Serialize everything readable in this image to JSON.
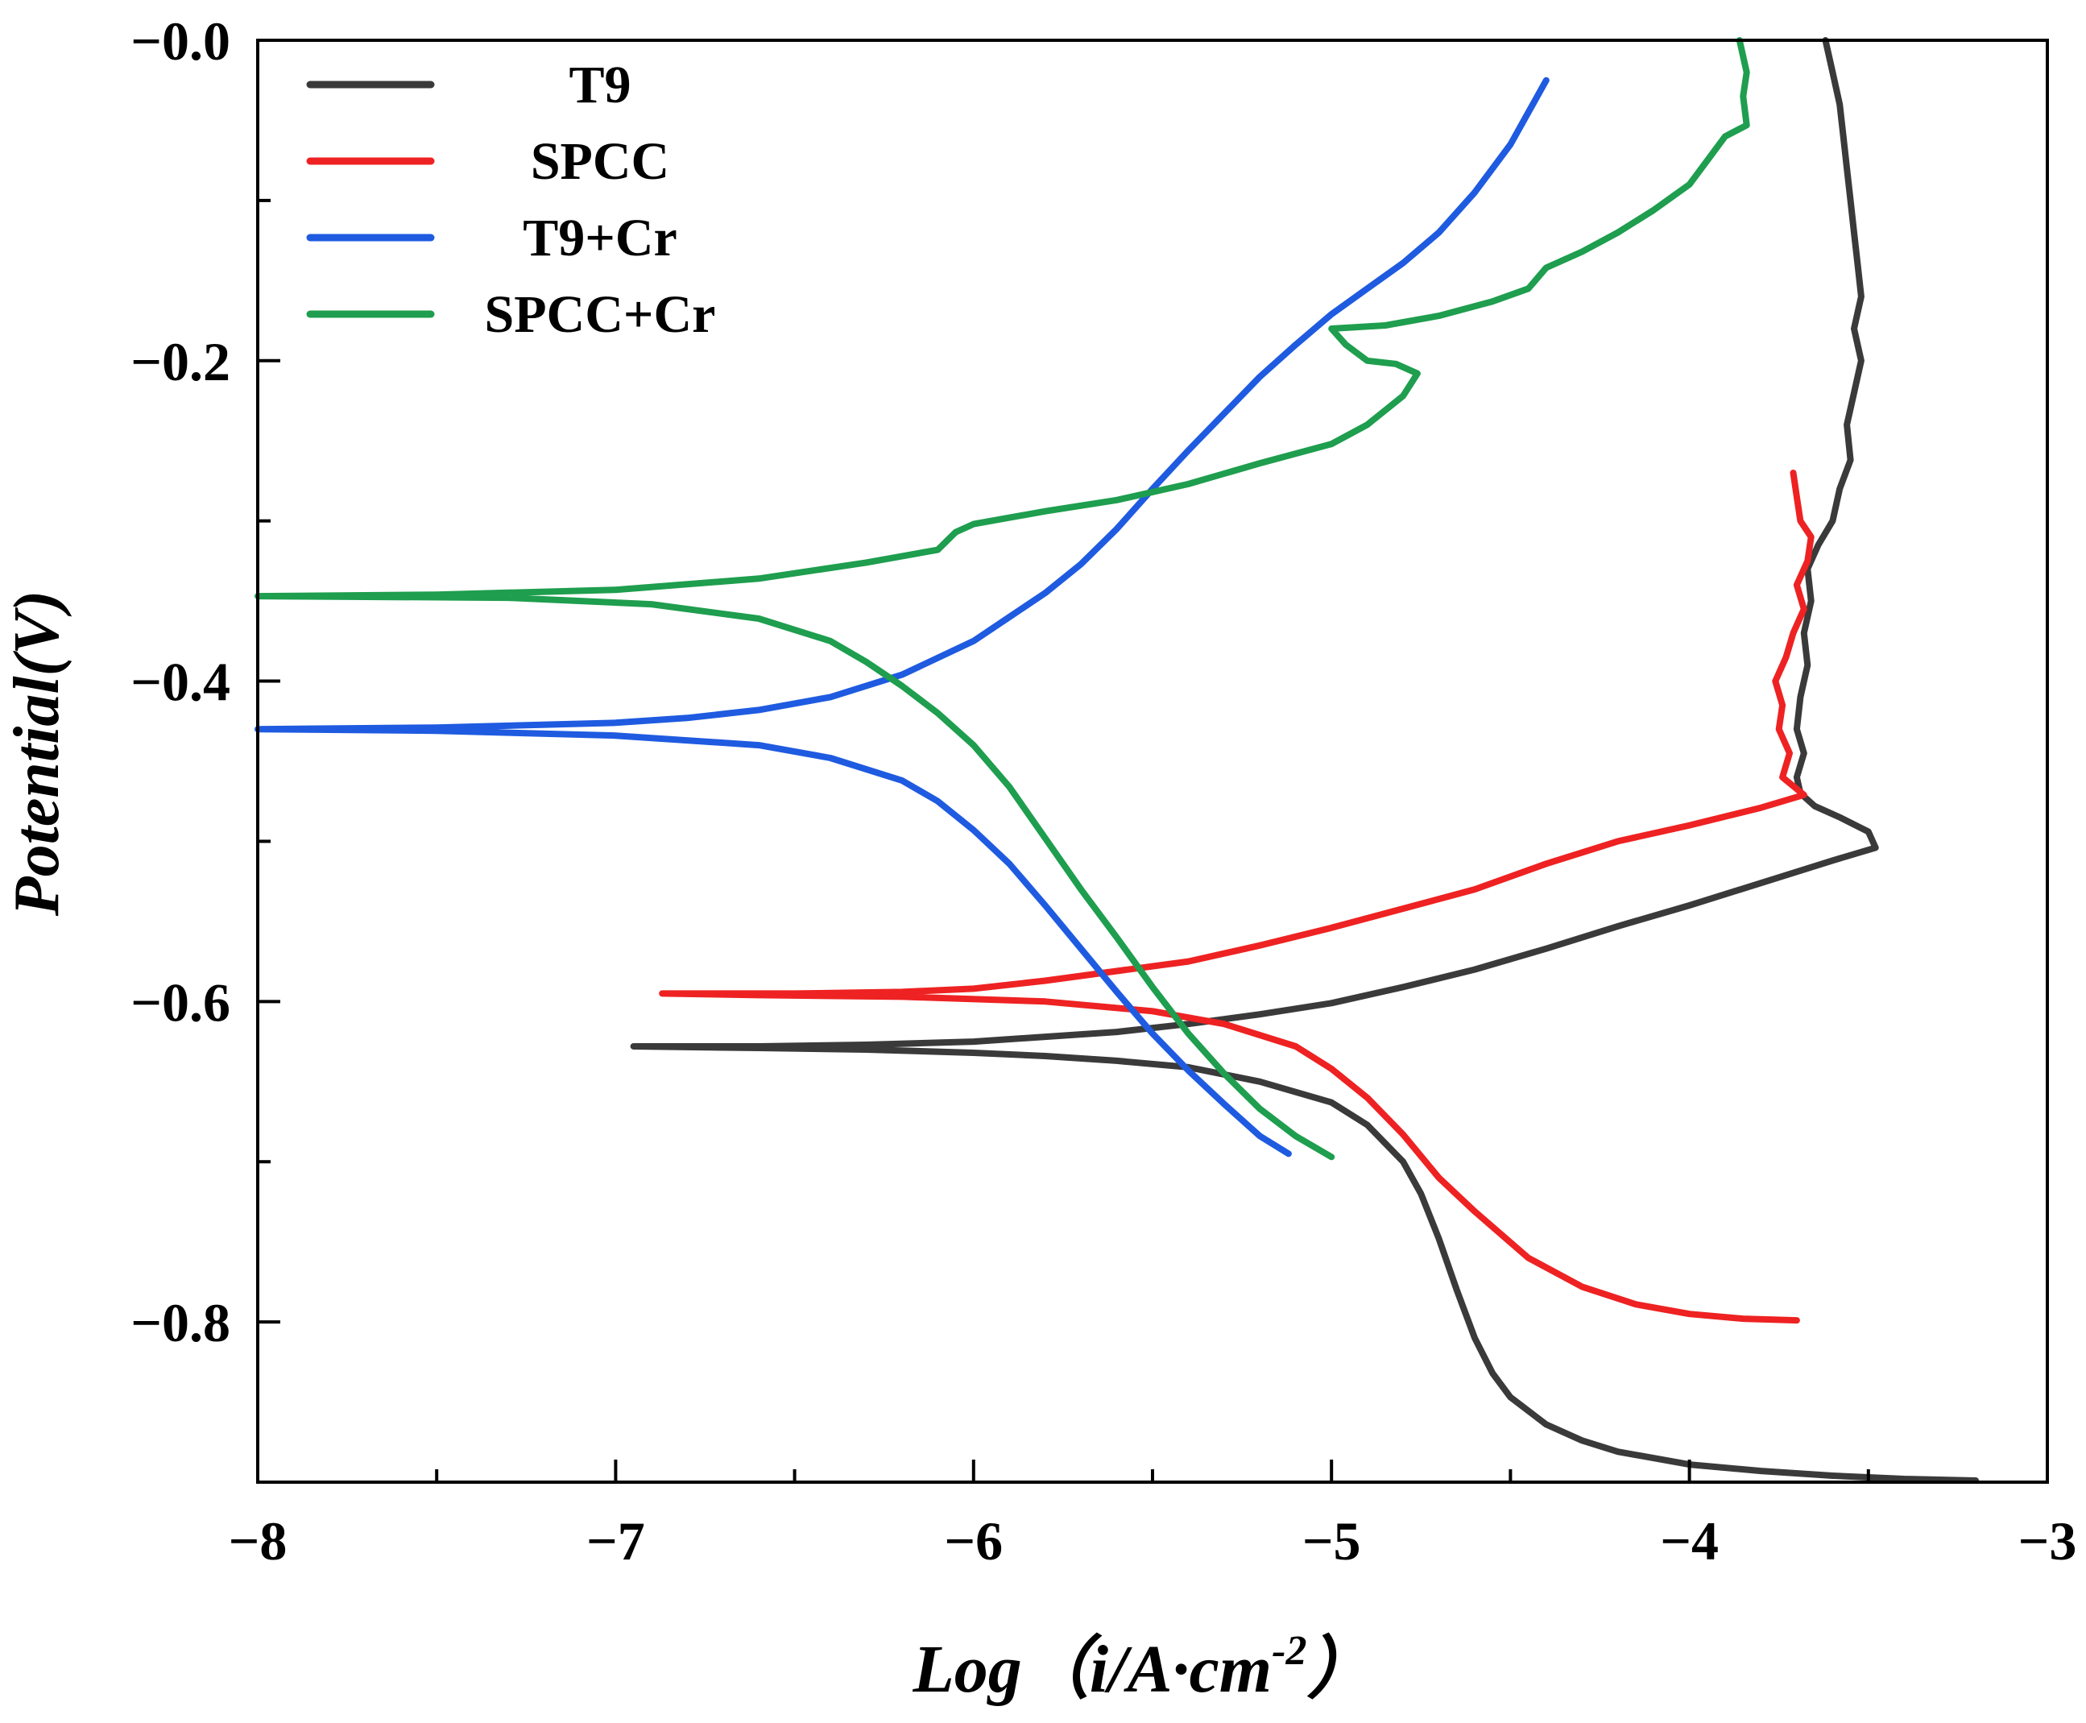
{
  "chart_data": {
    "type": "line",
    "xlabel": "Log（i/A·cm",
    "xlabel_sup": "-2",
    "xlabel_close": "）",
    "ylabel": "Potential(V)",
    "xlim": [
      -8,
      -3
    ],
    "ylim": [
      -0.9,
      0.0
    ],
    "x_ticks": [
      -8,
      -7,
      -6,
      -5,
      -4,
      -3
    ],
    "x_tick_labels": [
      "−8",
      "−7",
      "−6",
      "−5",
      "−4",
      "−3"
    ],
    "y_ticks": [
      -0.8,
      -0.6,
      -0.4,
      -0.2,
      0.0
    ],
    "y_tick_labels": [
      "−0.8",
      "−0.6",
      "−0.4",
      "−0.2",
      "−0.0"
    ],
    "legend_position": "top-left",
    "series": [
      {
        "name": "T9",
        "color": "#3a3a3a",
        "points": [
          [
            -3.2,
            -0.899
          ],
          [
            -3.4,
            -0.898
          ],
          [
            -3.6,
            -0.896
          ],
          [
            -3.8,
            -0.893
          ],
          [
            -4.0,
            -0.889
          ],
          [
            -4.2,
            -0.881
          ],
          [
            -4.3,
            -0.874
          ],
          [
            -4.4,
            -0.864
          ],
          [
            -4.5,
            -0.847
          ],
          [
            -4.55,
            -0.832
          ],
          [
            -4.6,
            -0.81
          ],
          [
            -4.65,
            -0.78
          ],
          [
            -4.7,
            -0.748
          ],
          [
            -4.75,
            -0.72
          ],
          [
            -4.8,
            -0.7
          ],
          [
            -4.9,
            -0.677
          ],
          [
            -5.0,
            -0.663
          ],
          [
            -5.2,
            -0.65
          ],
          [
            -5.4,
            -0.641
          ],
          [
            -5.6,
            -0.637
          ],
          [
            -5.8,
            -0.634
          ],
          [
            -6.0,
            -0.632
          ],
          [
            -6.3,
            -0.63
          ],
          [
            -6.6,
            -0.629
          ],
          [
            -6.95,
            -0.628
          ],
          [
            -6.6,
            -0.628
          ],
          [
            -6.3,
            -0.627
          ],
          [
            -6.0,
            -0.625
          ],
          [
            -5.8,
            -0.622
          ],
          [
            -5.6,
            -0.619
          ],
          [
            -5.4,
            -0.614
          ],
          [
            -5.2,
            -0.608
          ],
          [
            -5.0,
            -0.601
          ],
          [
            -4.8,
            -0.591
          ],
          [
            -4.6,
            -0.58
          ],
          [
            -4.4,
            -0.567
          ],
          [
            -4.2,
            -0.553
          ],
          [
            -4.0,
            -0.54
          ],
          [
            -3.8,
            -0.526
          ],
          [
            -3.6,
            -0.512
          ],
          [
            -3.48,
            -0.504
          ],
          [
            -3.5,
            -0.494
          ],
          [
            -3.58,
            -0.485
          ],
          [
            -3.65,
            -0.478
          ],
          [
            -3.69,
            -0.47
          ],
          [
            -3.7,
            -0.46
          ],
          [
            -3.68,
            -0.445
          ],
          [
            -3.7,
            -0.43
          ],
          [
            -3.69,
            -0.41
          ],
          [
            -3.67,
            -0.39
          ],
          [
            -3.68,
            -0.37
          ],
          [
            -3.66,
            -0.35
          ],
          [
            -3.67,
            -0.33
          ],
          [
            -3.64,
            -0.315
          ],
          [
            -3.6,
            -0.3
          ],
          [
            -3.58,
            -0.28
          ],
          [
            -3.55,
            -0.262
          ],
          [
            -3.56,
            -0.24
          ],
          [
            -3.54,
            -0.22
          ],
          [
            -3.52,
            -0.2
          ],
          [
            -3.54,
            -0.18
          ],
          [
            -3.52,
            -0.16
          ],
          [
            -3.53,
            -0.14
          ],
          [
            -3.54,
            -0.12
          ],
          [
            -3.55,
            -0.1
          ],
          [
            -3.56,
            -0.08
          ],
          [
            -3.57,
            -0.06
          ],
          [
            -3.58,
            -0.04
          ],
          [
            -3.6,
            -0.02
          ],
          [
            -3.62,
            0.0
          ]
        ]
      },
      {
        "name": "SPCC",
        "color": "#ee2222",
        "points": [
          [
            -3.7,
            -0.799
          ],
          [
            -3.85,
            -0.798
          ],
          [
            -4.0,
            -0.795
          ],
          [
            -4.15,
            -0.789
          ],
          [
            -4.3,
            -0.778
          ],
          [
            -4.45,
            -0.76
          ],
          [
            -4.6,
            -0.731
          ],
          [
            -4.7,
            -0.71
          ],
          [
            -4.8,
            -0.683
          ],
          [
            -4.9,
            -0.66
          ],
          [
            -5.0,
            -0.642
          ],
          [
            -5.1,
            -0.628
          ],
          [
            -5.3,
            -0.614
          ],
          [
            -5.5,
            -0.606
          ],
          [
            -5.8,
            -0.6
          ],
          [
            -6.2,
            -0.597
          ],
          [
            -6.6,
            -0.596
          ],
          [
            -6.87,
            -0.595
          ],
          [
            -6.5,
            -0.595
          ],
          [
            -6.2,
            -0.594
          ],
          [
            -6.0,
            -0.592
          ],
          [
            -5.8,
            -0.587
          ],
          [
            -5.6,
            -0.581
          ],
          [
            -5.4,
            -0.575
          ],
          [
            -5.2,
            -0.565
          ],
          [
            -5.0,
            -0.554
          ],
          [
            -4.8,
            -0.542
          ],
          [
            -4.6,
            -0.53
          ],
          [
            -4.4,
            -0.514
          ],
          [
            -4.2,
            -0.5
          ],
          [
            -4.0,
            -0.49
          ],
          [
            -3.8,
            -0.479
          ],
          [
            -3.68,
            -0.471
          ],
          [
            -3.74,
            -0.46
          ],
          [
            -3.72,
            -0.445
          ],
          [
            -3.75,
            -0.43
          ],
          [
            -3.74,
            -0.415
          ],
          [
            -3.76,
            -0.4
          ],
          [
            -3.73,
            -0.385
          ],
          [
            -3.71,
            -0.37
          ],
          [
            -3.68,
            -0.355
          ],
          [
            -3.7,
            -0.34
          ],
          [
            -3.67,
            -0.325
          ],
          [
            -3.66,
            -0.31
          ],
          [
            -3.69,
            -0.3
          ],
          [
            -3.7,
            -0.285
          ],
          [
            -3.71,
            -0.27
          ]
        ]
      },
      {
        "name": "T9+Cr",
        "color": "#1f5be0",
        "points": [
          [
            -5.12,
            -0.695
          ],
          [
            -5.2,
            -0.684
          ],
          [
            -5.3,
            -0.664
          ],
          [
            -5.4,
            -0.643
          ],
          [
            -5.5,
            -0.62
          ],
          [
            -5.6,
            -0.594
          ],
          [
            -5.7,
            -0.567
          ],
          [
            -5.8,
            -0.54
          ],
          [
            -5.9,
            -0.514
          ],
          [
            -6.0,
            -0.493
          ],
          [
            -6.1,
            -0.475
          ],
          [
            -6.2,
            -0.462
          ],
          [
            -6.4,
            -0.448
          ],
          [
            -6.6,
            -0.44
          ],
          [
            -7.0,
            -0.434
          ],
          [
            -7.5,
            -0.431
          ],
          [
            -8.0,
            -0.43
          ],
          [
            -7.5,
            -0.429
          ],
          [
            -7.0,
            -0.426
          ],
          [
            -6.8,
            -0.423
          ],
          [
            -6.6,
            -0.418
          ],
          [
            -6.4,
            -0.41
          ],
          [
            -6.2,
            -0.396
          ],
          [
            -6.0,
            -0.375
          ],
          [
            -5.9,
            -0.36
          ],
          [
            -5.8,
            -0.345
          ],
          [
            -5.7,
            -0.327
          ],
          [
            -5.6,
            -0.305
          ],
          [
            -5.5,
            -0.28
          ],
          [
            -5.4,
            -0.256
          ],
          [
            -5.3,
            -0.233
          ],
          [
            -5.2,
            -0.21
          ],
          [
            -5.1,
            -0.19
          ],
          [
            -5.0,
            -0.171
          ],
          [
            -4.9,
            -0.155
          ],
          [
            -4.8,
            -0.139
          ],
          [
            -4.7,
            -0.12
          ],
          [
            -4.6,
            -0.095
          ],
          [
            -4.5,
            -0.065
          ],
          [
            -4.45,
            -0.045
          ],
          [
            -4.4,
            -0.025
          ]
        ]
      },
      {
        "name": "SPCC+Cr",
        "color": "#1e9e4e",
        "points": [
          [
            -5.0,
            -0.697
          ],
          [
            -5.1,
            -0.684
          ],
          [
            -5.2,
            -0.667
          ],
          [
            -5.3,
            -0.645
          ],
          [
            -5.4,
            -0.62
          ],
          [
            -5.5,
            -0.591
          ],
          [
            -5.6,
            -0.56
          ],
          [
            -5.7,
            -0.53
          ],
          [
            -5.8,
            -0.498
          ],
          [
            -5.9,
            -0.466
          ],
          [
            -6.0,
            -0.44
          ],
          [
            -6.1,
            -0.42
          ],
          [
            -6.2,
            -0.403
          ],
          [
            -6.3,
            -0.388
          ],
          [
            -6.4,
            -0.375
          ],
          [
            -6.6,
            -0.361
          ],
          [
            -6.9,
            -0.352
          ],
          [
            -7.3,
            -0.348
          ],
          [
            -8.0,
            -0.347
          ],
          [
            -7.5,
            -0.346
          ],
          [
            -7.0,
            -0.343
          ],
          [
            -6.6,
            -0.336
          ],
          [
            -6.3,
            -0.326
          ],
          [
            -6.1,
            -0.318
          ],
          [
            -6.05,
            -0.307
          ],
          [
            -6.0,
            -0.302
          ],
          [
            -5.8,
            -0.294
          ],
          [
            -5.6,
            -0.287
          ],
          [
            -5.4,
            -0.277
          ],
          [
            -5.2,
            -0.264
          ],
          [
            -5.0,
            -0.252
          ],
          [
            -4.9,
            -0.24
          ],
          [
            -4.8,
            -0.222
          ],
          [
            -4.76,
            -0.208
          ],
          [
            -4.82,
            -0.202
          ],
          [
            -4.9,
            -0.2
          ],
          [
            -4.96,
            -0.19
          ],
          [
            -5.0,
            -0.18
          ],
          [
            -4.85,
            -0.178
          ],
          [
            -4.7,
            -0.172
          ],
          [
            -4.55,
            -0.163
          ],
          [
            -4.45,
            -0.155
          ],
          [
            -4.4,
            -0.142
          ],
          [
            -4.3,
            -0.132
          ],
          [
            -4.2,
            -0.12
          ],
          [
            -4.1,
            -0.106
          ],
          [
            -4.0,
            -0.09
          ],
          [
            -3.95,
            -0.075
          ],
          [
            -3.9,
            -0.06
          ],
          [
            -3.84,
            -0.053
          ],
          [
            -3.85,
            -0.035
          ],
          [
            -3.84,
            -0.02
          ],
          [
            -3.86,
            0.0
          ]
        ]
      }
    ]
  }
}
